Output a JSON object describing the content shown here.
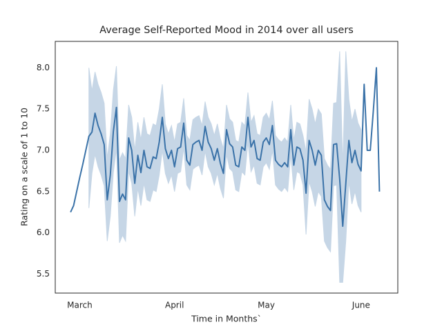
{
  "chart_data": {
    "type": "line",
    "title": "Average Self-Reported Mood in 2014 over all users",
    "xlabel": "Time in Months`",
    "ylabel": "Rating on a scale of 1 to 10",
    "color": "#3a72a8",
    "band_color": "#c6d6e6",
    "grid": false,
    "xlim": [
      52,
      164
    ],
    "ylim": [
      5.27,
      8.32
    ],
    "xticks": [
      {
        "value": 60,
        "label": "March"
      },
      {
        "value": 91,
        "label": "April"
      },
      {
        "value": 121,
        "label": "May"
      },
      {
        "value": 152,
        "label": "June"
      }
    ],
    "yticks": [
      5.5,
      {
        "value": 6,
        "label": "6.0"
      },
      6.5,
      {
        "value": 7,
        "label": "7.0"
      },
      7.5,
      {
        "value": 8,
        "label": "8.0"
      }
    ],
    "x": [
      57,
      58,
      59,
      60,
      61,
      62,
      63,
      64,
      65,
      66,
      67,
      68,
      69,
      70,
      71,
      72,
      73,
      74,
      75,
      76,
      77,
      78,
      79,
      80,
      81,
      82,
      83,
      84,
      85,
      86,
      87,
      88,
      89,
      90,
      91,
      92,
      93,
      94,
      95,
      96,
      97,
      98,
      99,
      100,
      101,
      102,
      103,
      104,
      105,
      106,
      107,
      108,
      109,
      110,
      111,
      112,
      113,
      114,
      115,
      116,
      117,
      118,
      119,
      120,
      121,
      122,
      123,
      124,
      125,
      126,
      127,
      128,
      129,
      130,
      131,
      132,
      133,
      134,
      135,
      136,
      137,
      138,
      139,
      140,
      141,
      142,
      143,
      144,
      145,
      146,
      147,
      148,
      149,
      150,
      151,
      152,
      153,
      154,
      155,
      156,
      157,
      158
    ],
    "values": [
      6.25,
      6.33,
      6.5,
      6.67,
      6.83,
      7.0,
      7.17,
      7.22,
      7.45,
      7.3,
      7.2,
      7.07,
      6.4,
      6.7,
      7.23,
      7.52,
      6.38,
      6.47,
      6.4,
      7.15,
      7.0,
      6.6,
      6.94,
      6.73,
      7.0,
      6.8,
      6.78,
      6.92,
      6.9,
      7.1,
      7.4,
      7.02,
      6.9,
      7.0,
      6.8,
      7.02,
      7.04,
      7.33,
      6.88,
      6.82,
      7.07,
      7.1,
      7.12,
      7.0,
      7.29,
      7.1,
      7.02,
      6.88,
      7.02,
      6.84,
      6.72,
      7.25,
      7.08,
      7.04,
      6.82,
      6.8,
      7.04,
      7.0,
      7.4,
      7.04,
      7.12,
      6.9,
      6.88,
      7.1,
      7.15,
      7.07,
      7.3,
      6.88,
      6.83,
      6.8,
      6.85,
      6.8,
      7.25,
      6.82,
      7.04,
      7.02,
      6.88,
      6.48,
      7.12,
      7.0,
      6.82,
      7.0,
      6.94,
      6.4,
      6.32,
      6.27,
      7.07,
      7.08,
      6.65,
      6.08,
      6.6,
      7.12,
      6.85,
      7.0,
      6.83,
      6.75,
      7.8,
      7.0,
      7.0,
      7.48,
      8.0,
      6.5
    ],
    "lower": [
      null,
      null,
      null,
      null,
      null,
      null,
      6.3,
      6.72,
      6.95,
      6.8,
      6.7,
      6.57,
      5.9,
      6.2,
      6.73,
      7.02,
      5.88,
      5.97,
      5.9,
      6.75,
      6.6,
      6.2,
      6.54,
      6.33,
      6.6,
      6.4,
      6.38,
      6.52,
      6.5,
      6.7,
      7.0,
      6.72,
      6.6,
      6.7,
      6.5,
      6.72,
      6.74,
      7.03,
      6.58,
      6.52,
      6.77,
      6.8,
      6.82,
      6.7,
      6.99,
      6.8,
      6.72,
      6.58,
      6.72,
      6.54,
      6.42,
      6.95,
      6.78,
      6.74,
      6.52,
      6.5,
      6.74,
      6.7,
      7.1,
      6.74,
      6.82,
      6.6,
      6.58,
      6.8,
      6.85,
      6.77,
      7.0,
      6.58,
      6.53,
      6.5,
      6.55,
      6.5,
      6.95,
      6.52,
      6.74,
      6.72,
      6.58,
      5.98,
      6.62,
      6.5,
      6.32,
      6.5,
      6.44,
      5.9,
      5.82,
      5.77,
      6.57,
      6.58,
      5.4,
      5.4,
      5.9,
      6.62,
      6.35,
      6.5,
      6.33,
      6.25,
      null,
      null,
      null,
      null,
      null,
      null
    ],
    "upper": [
      null,
      null,
      null,
      null,
      null,
      null,
      8.0,
      7.72,
      7.95,
      7.8,
      7.7,
      7.57,
      6.9,
      7.2,
      7.73,
      8.02,
      6.88,
      6.97,
      6.9,
      7.55,
      7.4,
      7.0,
      7.34,
      7.13,
      7.4,
      7.2,
      7.18,
      7.32,
      7.3,
      7.5,
      7.8,
      7.32,
      7.2,
      7.3,
      7.1,
      7.32,
      7.34,
      7.63,
      7.18,
      7.12,
      7.37,
      7.4,
      7.42,
      7.3,
      7.59,
      7.4,
      7.32,
      7.18,
      7.32,
      7.14,
      7.02,
      7.55,
      7.38,
      7.34,
      7.12,
      7.1,
      7.34,
      7.3,
      7.7,
      7.34,
      7.42,
      7.2,
      7.18,
      7.4,
      7.45,
      7.37,
      7.6,
      7.18,
      7.13,
      7.1,
      7.15,
      7.1,
      7.55,
      7.12,
      7.34,
      7.32,
      7.18,
      6.98,
      7.62,
      7.5,
      7.32,
      7.5,
      7.44,
      6.9,
      6.82,
      6.77,
      7.57,
      7.58,
      8.2,
      6.8,
      8.2,
      7.62,
      7.35,
      7.5,
      7.33,
      7.25,
      null,
      null,
      null,
      null,
      null,
      null
    ]
  }
}
